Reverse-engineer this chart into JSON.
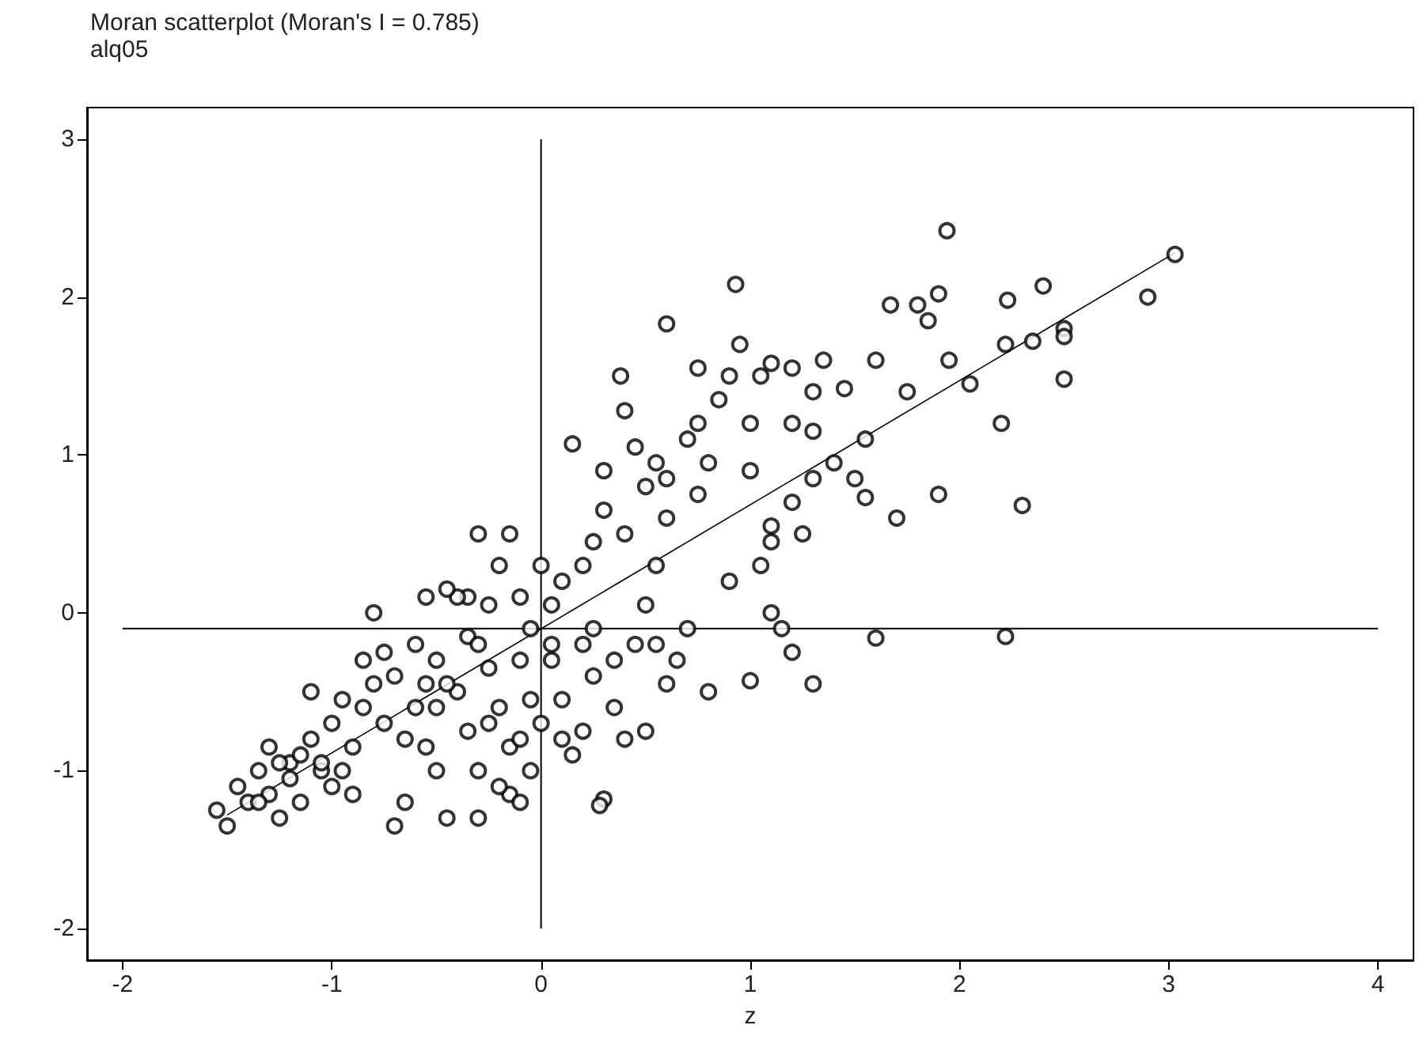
{
  "chart_data": {
    "type": "scatter",
    "title": "Moran scatterplot (Moran's I = 0.785)",
    "subtitle": "alq05",
    "xlabel": "z",
    "xlim": [
      -2.17,
      4.17
    ],
    "xticks": [
      -2,
      -1,
      0,
      1,
      2,
      3,
      4
    ],
    "ylim": [
      -2.2,
      3.2
    ],
    "yticks": [
      -2,
      -1,
      0,
      1,
      2,
      3
    ],
    "grid": false,
    "ref_lines": [
      {
        "axis": "x",
        "value": 0,
        "color": "#000000"
      },
      {
        "axis": "y",
        "value": -0.1,
        "color": "#000000"
      }
    ],
    "series": [
      {
        "color": "#000000",
        "marker": "circle",
        "x": [
          1.94,
          0.93,
          3.03,
          2.9,
          2.4,
          2.23,
          1.9,
          1.8,
          1.67,
          2.5,
          2.5,
          2.5,
          2.35,
          2.22,
          2.2,
          2.3,
          2.22,
          1.6,
          1.9,
          1.7,
          1.95,
          2.05,
          1.85,
          1.6,
          1.75,
          1.55,
          1.5,
          1.55,
          1.45,
          1.35,
          1.3,
          1.2,
          1.1,
          1.05,
          1.0,
          0.9,
          0.95,
          0.85,
          0.75,
          0.6,
          0.75,
          0.7,
          0.8,
          1.0,
          1.2,
          1.3,
          1.4,
          1.3,
          1.2,
          1.1,
          1.05,
          1.1,
          1.15,
          1.3,
          1.0,
          1.2,
          1.25,
          1.1,
          0.9,
          0.75,
          0.6,
          0.55,
          0.45,
          0.5,
          0.6,
          0.4,
          0.4,
          0.38,
          0.3,
          0.3,
          0.25,
          0.15,
          0.2,
          0.1,
          0.05,
          0.55,
          0.5,
          0.45,
          0.65,
          0.7,
          0.8,
          0.6,
          0.5,
          0.4,
          0.35,
          0.3,
          0.28,
          0.2,
          0.15,
          0.1,
          0.05,
          0.0,
          0.25,
          0.35,
          0.55,
          -1.55,
          -1.5,
          -1.45,
          -1.4,
          -1.35,
          -1.3,
          -1.3,
          -1.25,
          -1.2,
          -1.2,
          -1.15,
          -1.1,
          -1.1,
          -1.05,
          -1.0,
          -1.0,
          -0.95,
          -0.9,
          -0.9,
          -0.85,
          -0.8,
          -0.8,
          -0.75,
          -0.7,
          -0.7,
          -0.65,
          -0.6,
          -0.6,
          -0.55,
          -0.5,
          -0.5,
          -0.45,
          -0.4,
          -0.35,
          -0.35,
          -0.35,
          -0.3,
          -0.3,
          -0.25,
          -0.25,
          -0.2,
          -0.2,
          -0.15,
          -0.15,
          -0.1,
          -0.1,
          -0.05,
          -0.05,
          -0.3,
          -0.15,
          -0.1,
          -0.2,
          -0.4,
          -0.45,
          -0.55,
          -1.25,
          -1.35,
          -1.05,
          -0.95,
          -1.15,
          -0.85,
          -0.65,
          -0.5,
          -0.45,
          -0.75,
          -0.55,
          -0.3,
          -0.25,
          -0.1,
          -0.05,
          0.0,
          0.05,
          0.1,
          0.2,
          0.25
        ],
        "values": [
          2.42,
          2.08,
          2.27,
          2.0,
          2.07,
          1.98,
          2.02,
          1.95,
          1.95,
          1.8,
          1.75,
          1.48,
          1.72,
          1.7,
          1.2,
          0.68,
          -0.15,
          -0.16,
          0.75,
          0.6,
          1.6,
          1.45,
          1.85,
          1.6,
          1.4,
          1.1,
          0.85,
          0.73,
          1.42,
          1.6,
          1.4,
          1.55,
          1.58,
          1.5,
          1.2,
          1.5,
          1.7,
          1.35,
          1.55,
          1.83,
          1.2,
          1.1,
          0.95,
          0.9,
          1.2,
          1.15,
          0.95,
          0.85,
          0.7,
          0.55,
          0.3,
          0.0,
          -0.1,
          -0.45,
          -0.43,
          -0.25,
          0.5,
          0.45,
          0.2,
          0.75,
          0.85,
          0.95,
          1.05,
          0.8,
          0.6,
          0.5,
          1.28,
          1.5,
          0.9,
          0.65,
          0.45,
          1.07,
          0.3,
          0.2,
          0.05,
          0.3,
          0.05,
          -0.2,
          -0.3,
          -0.1,
          -0.5,
          -0.45,
          -0.75,
          -0.8,
          -0.6,
          -1.18,
          -1.22,
          -0.75,
          -0.9,
          -0.55,
          -0.3,
          -0.7,
          -0.4,
          -0.3,
          -0.2,
          -1.25,
          -1.35,
          -1.1,
          -1.2,
          -1.0,
          -0.85,
          -1.15,
          -1.3,
          -0.95,
          -1.05,
          -1.2,
          -0.5,
          -0.8,
          -1.0,
          -1.1,
          -0.7,
          -0.55,
          -0.85,
          -1.15,
          -0.3,
          -0.45,
          0.0,
          -0.7,
          -0.4,
          -1.35,
          -1.2,
          -0.6,
          -0.2,
          -0.85,
          -0.3,
          -1.0,
          -1.3,
          -0.5,
          0.1,
          -0.15,
          -0.75,
          -1.3,
          -1.0,
          0.05,
          -0.35,
          0.3,
          -0.6,
          -1.15,
          -0.85,
          0.1,
          -0.3,
          -0.55,
          -0.1,
          0.5,
          0.5,
          -1.2,
          -1.1,
          0.1,
          0.15,
          0.1,
          -0.95,
          -1.2,
          -0.95,
          -1.0,
          -0.9,
          -0.6,
          -0.8,
          -0.6,
          -0.45,
          -0.25,
          -0.45,
          -0.2,
          -0.7,
          -0.8,
          -1.0,
          0.3,
          -0.2,
          -0.8,
          -0.2,
          -0.1
        ]
      },
      {
        "type": "line",
        "marker": "none",
        "color": "#000000",
        "x": [
          -1.5,
          3.03
        ],
        "values": [
          -1.28,
          2.28
        ]
      }
    ]
  }
}
